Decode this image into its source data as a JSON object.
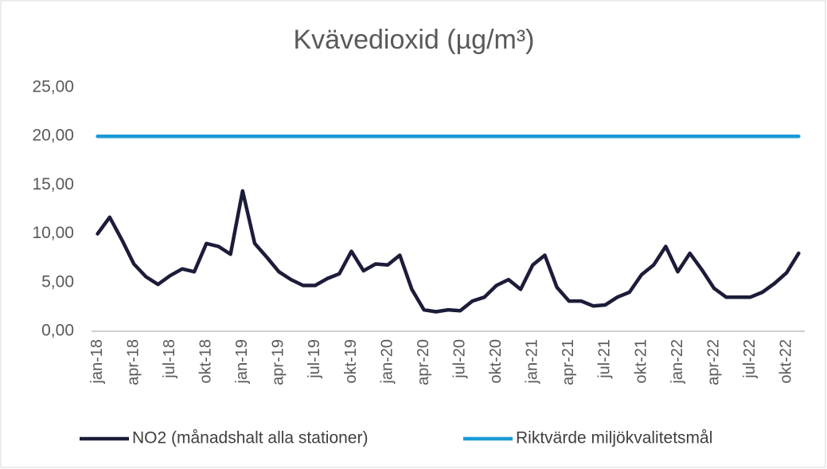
{
  "chart_data": {
    "type": "line",
    "title": "Kvävedioxid (µg/m³)",
    "categories": [
      "jan-18",
      null,
      null,
      "apr-18",
      null,
      null,
      "jul-18",
      null,
      null,
      "okt-18",
      null,
      null,
      "jan-19",
      null,
      null,
      "apr-19",
      null,
      null,
      "jul-19",
      null,
      null,
      "okt-19",
      null,
      null,
      "jan-20",
      null,
      null,
      "apr-20",
      null,
      null,
      "jul-20",
      null,
      null,
      "okt-20",
      null,
      null,
      "jan-21",
      null,
      null,
      "apr-21",
      null,
      null,
      "jul-21",
      null,
      null,
      "okt-21",
      null,
      null,
      "jan-22",
      null,
      null,
      "apr-22",
      null,
      null,
      "jul-22",
      null,
      null,
      "okt-22",
      null
    ],
    "series": [
      {
        "name": "NO2 (månadshalt alla stationer)",
        "color": "#1c1c3a",
        "values": [
          10.0,
          11.7,
          9.4,
          6.9,
          5.6,
          4.8,
          5.7,
          6.4,
          6.1,
          9.0,
          8.7,
          7.9,
          14.4,
          9.0,
          7.6,
          6.1,
          5.3,
          4.7,
          4.7,
          5.4,
          5.9,
          8.2,
          6.2,
          6.9,
          6.8,
          7.8,
          4.3,
          2.2,
          2.0,
          2.2,
          2.1,
          3.1,
          3.5,
          4.7,
          5.3,
          4.3,
          6.8,
          7.8,
          4.5,
          3.1,
          3.1,
          2.6,
          2.7,
          3.5,
          4.0,
          5.8,
          6.8,
          8.7,
          6.1,
          8.0,
          6.3,
          4.4,
          3.5,
          3.5,
          3.5,
          4.0,
          4.9,
          6.0,
          8.0
        ]
      },
      {
        "name": "Riktvärde miljökvalitetsmål",
        "color": "#1a9ad6",
        "values": [
          20,
          20,
          20,
          20,
          20,
          20,
          20,
          20,
          20,
          20,
          20,
          20,
          20,
          20,
          20,
          20,
          20,
          20,
          20,
          20,
          20,
          20,
          20,
          20,
          20,
          20,
          20,
          20,
          20,
          20,
          20,
          20,
          20,
          20,
          20,
          20,
          20,
          20,
          20,
          20,
          20,
          20,
          20,
          20,
          20,
          20,
          20,
          20,
          20,
          20,
          20,
          20,
          20,
          20,
          20,
          20,
          20,
          20,
          20
        ]
      }
    ],
    "ylim": [
      0,
      25
    ],
    "yticks": [
      {
        "value": 0,
        "label": "0,00"
      },
      {
        "value": 5,
        "label": "5,00"
      },
      {
        "value": 10,
        "label": "10,00"
      },
      {
        "value": 15,
        "label": "15,00"
      },
      {
        "value": 20,
        "label": "20,00"
      },
      {
        "value": 25,
        "label": "25,00"
      }
    ],
    "legend": "bottom"
  }
}
